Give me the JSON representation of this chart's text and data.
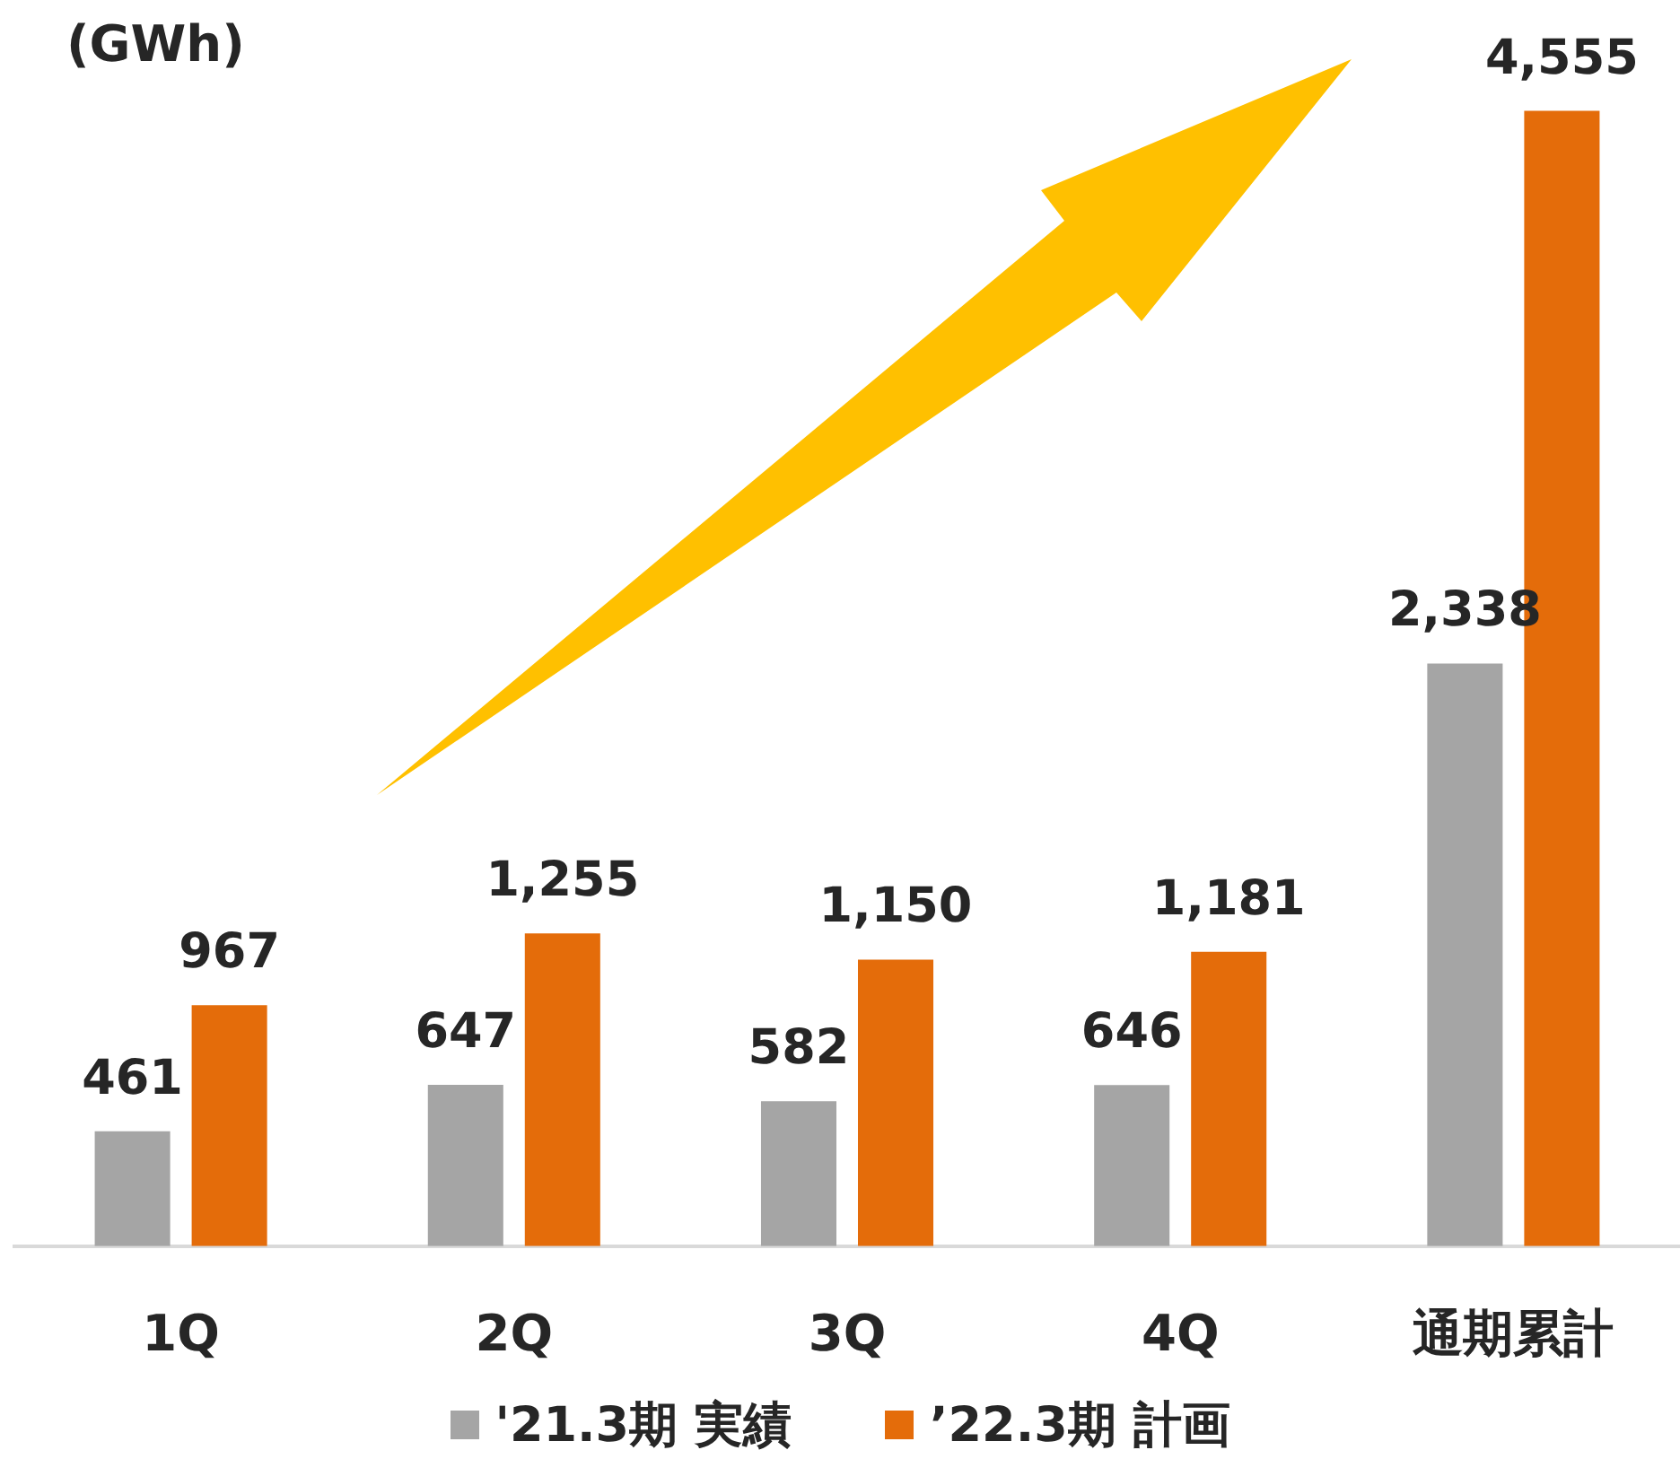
{
  "chart_data": {
    "type": "bar",
    "ylabel": "(GWh)",
    "categories": [
      "1Q",
      "2Q",
      "3Q",
      "4Q",
      "通期累計"
    ],
    "series": [
      {
        "name": "'21.3期 実績",
        "color": "#a5a5a5",
        "values": [
          461,
          647,
          582,
          646,
          2338
        ],
        "value_labels": [
          "461",
          "647",
          "582",
          "646",
          "2,338"
        ]
      },
      {
        "name": "’22.3期 計画",
        "color": "#e46c0a",
        "values": [
          967,
          1255,
          1150,
          1181,
          4555
        ],
        "value_labels": [
          "967",
          "1,255",
          "1,150",
          "1,181",
          "4,555"
        ]
      }
    ],
    "legend": "bottom",
    "grid": false,
    "tick_labels": "x"
  }
}
